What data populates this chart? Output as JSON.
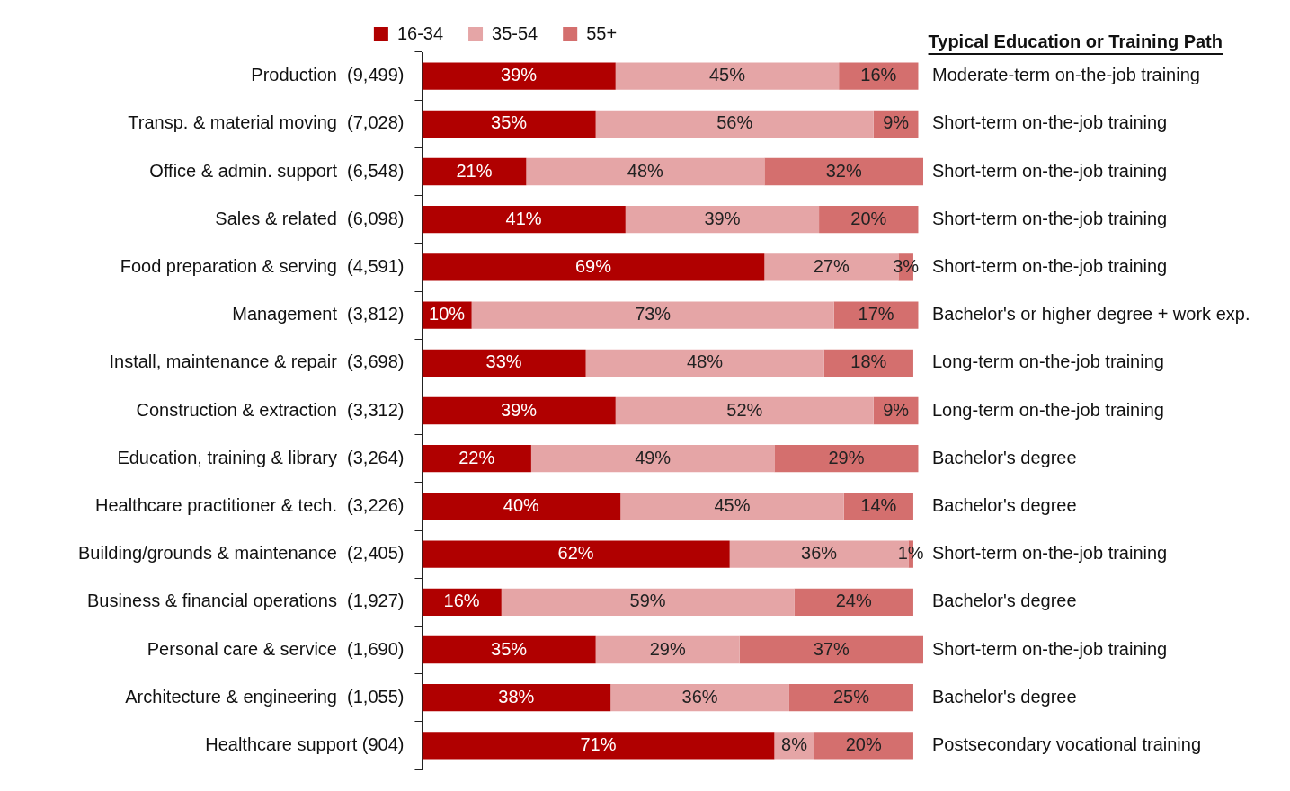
{
  "chart_data": {
    "type": "bar",
    "orientation": "horizontal",
    "stacked": true,
    "legend": "top",
    "grid": false,
    "tick_labels": "y",
    "xlim": [
      0,
      101
    ],
    "categories": [
      "Production  (9,499)",
      "Transp. & material moving  (7,028)",
      "Office & admin. support  (6,548)",
      "Sales & related  (6,098)",
      "Food preparation & serving  (4,591)",
      "Management  (3,812)",
      "Install, maintenance & repair  (3,698)",
      "Construction & extraction  (3,312)",
      "Education, training & library  (3,264)",
      "Healthcare practitioner & tech.  (3,226)",
      "Building/grounds & maintenance  (2,405)",
      "Business & financial operations  (1,927)",
      "Personal care & service  (1,690)",
      "Architecture & engineering  (1,055)",
      "Healthcare support (904)"
    ],
    "series": [
      {
        "name": "16-34",
        "color": "#b00000",
        "values": [
          39,
          35,
          21,
          41,
          69,
          10,
          33,
          39,
          22,
          40,
          62,
          16,
          35,
          38,
          71
        ],
        "value_labels": [
          "39%",
          "35%",
          "21%",
          "41%",
          "69%",
          "10%",
          "33%",
          "39%",
          "22%",
          "40%",
          "62%",
          "16%",
          "35%",
          "38%",
          "71%"
        ]
      },
      {
        "name": "35-54",
        "color": "#e5a5a6",
        "values": [
          45,
          56,
          48,
          39,
          27,
          73,
          48,
          52,
          49,
          45,
          36,
          59,
          29,
          36,
          8
        ],
        "value_labels": [
          "45%",
          "56%",
          "48%",
          "39%",
          "27%",
          "73%",
          "48%",
          "52%",
          "49%",
          "45%",
          "36%",
          "59%",
          "29%",
          "36%",
          "8%"
        ]
      },
      {
        "name": "55+",
        "color": "#d46f6e",
        "values": [
          16,
          9,
          32,
          20,
          3,
          17,
          18,
          9,
          29,
          14,
          1,
          24,
          37,
          25,
          20
        ],
        "value_labels": [
          "16%",
          "9%",
          "32%",
          "20%",
          "3%",
          "17%",
          "18%",
          "9%",
          "29%",
          "14%",
          "1%",
          "24%",
          "37%",
          "25%",
          "20%"
        ]
      }
    ],
    "annotations": [
      "Typical Education or Training Path",
      "Moderate-term on-the-job training",
      "Short-term on-the-job training",
      "Short-term on-the-job training",
      "Short-term on-the-job training",
      "Short-term on-the-job training",
      "Bachelor's or higher degree + work exp.",
      "Long-term on-the-job training",
      "Long-term on-the-job training",
      "Bachelor's degree",
      "Bachelor's degree",
      "Short-term on-the-job training",
      "Bachelor's degree",
      "Short-term on-the-job training",
      "Bachelor's degree",
      "Postsecondary vocational training"
    ]
  }
}
